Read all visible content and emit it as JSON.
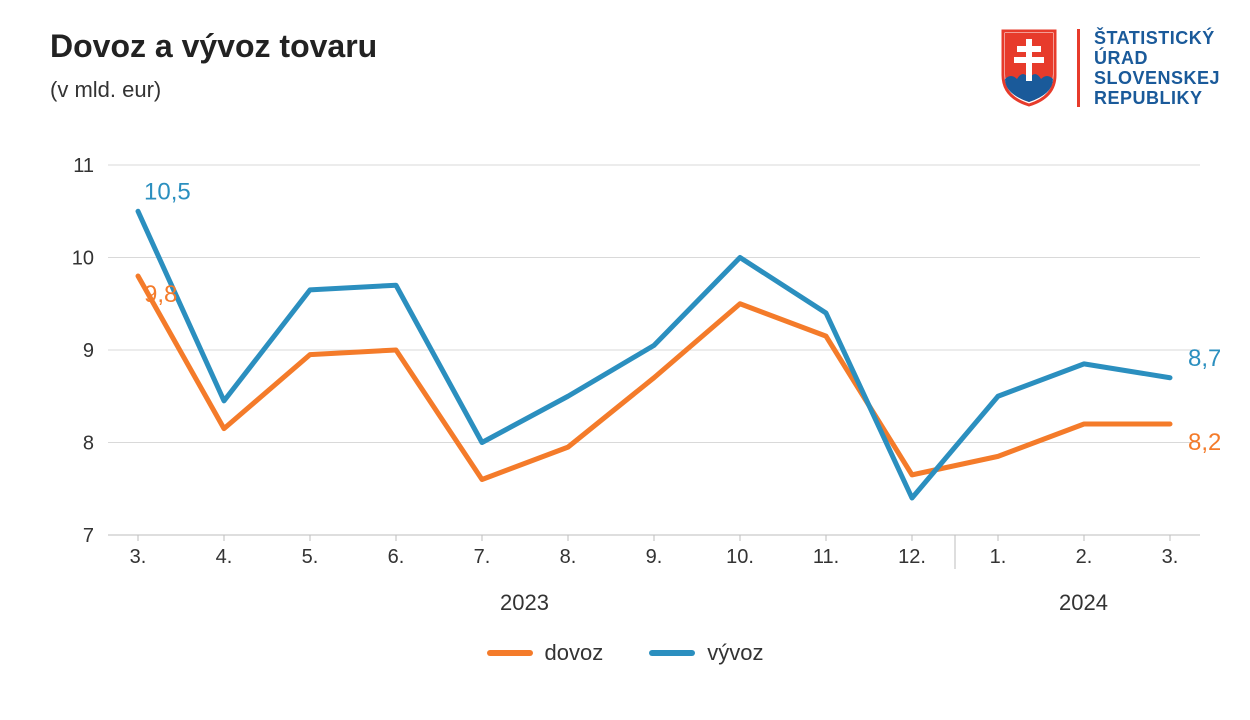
{
  "header": {
    "title": "Dovoz a vývoz tovaru",
    "subtitle": "(v mld. eur)"
  },
  "logo": {
    "text_lines": [
      "ŠTATISTICKÝ",
      "ÚRAD",
      "SLOVENSKEJ",
      "REPUBLIKY"
    ],
    "text_color": "#1a5a9a",
    "divider_color": "#e73b2b",
    "shield_red": "#e73b2b",
    "shield_blue": "#1a5a9a",
    "shield_white": "#ffffff"
  },
  "chart": {
    "type": "line",
    "x_categories": [
      "3.",
      "4.",
      "5.",
      "6.",
      "7.",
      "8.",
      "9.",
      "10.",
      "11.",
      "12.",
      "1.",
      "2.",
      "3."
    ],
    "year_groups": [
      {
        "label": "2023",
        "start_index": 0,
        "end_index": 9
      },
      {
        "label": "2024",
        "start_index": 10,
        "end_index": 12
      }
    ],
    "ylim": [
      7,
      11
    ],
    "yticks": [
      7,
      8,
      9,
      10,
      11
    ],
    "series": [
      {
        "key": "dovoz",
        "label": "dovoz",
        "color": "#f47b2a",
        "line_width": 5,
        "values": [
          9.8,
          8.15,
          8.95,
          9.0,
          7.6,
          7.95,
          8.7,
          9.5,
          9.15,
          7.65,
          7.85,
          8.2,
          8.2
        ],
        "start_label": "9,8",
        "end_label": "8,2",
        "start_label_pos": "below",
        "end_label_pos": "below"
      },
      {
        "key": "vyvoz",
        "label": "vývoz",
        "color": "#2b8fbf",
        "line_width": 5,
        "values": [
          10.5,
          8.45,
          9.65,
          9.7,
          8.0,
          8.5,
          9.05,
          10.0,
          9.4,
          7.4,
          8.5,
          8.85,
          8.7
        ],
        "start_label": "10,5",
        "end_label": "8,7",
        "start_label_pos": "above",
        "end_label_pos": "above"
      }
    ],
    "background_color": "#ffffff",
    "grid_color": "#d9d9d9",
    "axis_color": "#bdbdbd",
    "tick_label_fontsize": 20,
    "tick_label_color": "#333333",
    "point_label_fontsize": 24
  },
  "legend": {
    "items": [
      {
        "label": "dovoz",
        "color": "#f47b2a"
      },
      {
        "label": "vývoz",
        "color": "#2b8fbf"
      }
    ]
  }
}
